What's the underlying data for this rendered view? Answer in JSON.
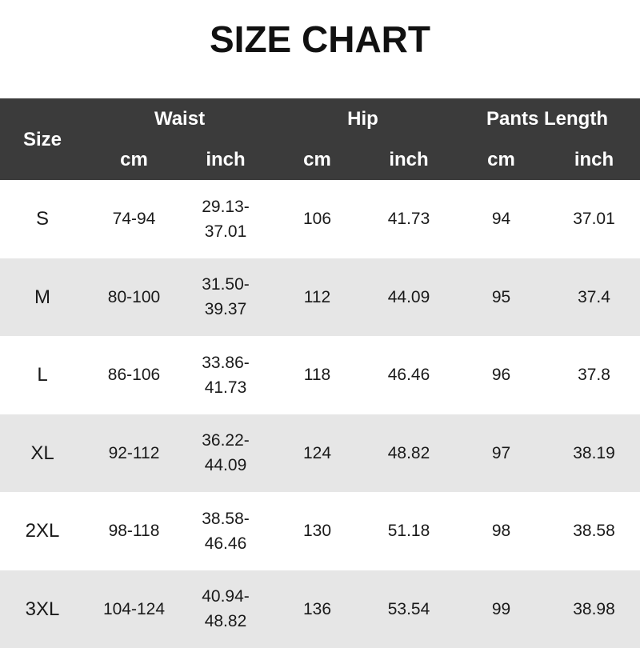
{
  "title": "SIZE CHART",
  "header": {
    "size": "Size",
    "groups": [
      "Waist",
      "Hip",
      "Pants Length"
    ],
    "units": [
      "cm",
      "inch",
      "cm",
      "inch",
      "cm",
      "inch"
    ]
  },
  "colors": {
    "header_bg": "#3b3b3b",
    "alt_row": "#e6e6e6"
  },
  "rows": [
    {
      "size": "S",
      "waist_cm": "74-94",
      "waist_in_1": "29.13-",
      "waist_in_2": "37.01",
      "hip_cm": "106",
      "hip_in": "41.73",
      "len_cm": "94",
      "len_in": "37.01"
    },
    {
      "size": "M",
      "waist_cm": "80-100",
      "waist_in_1": "31.50-",
      "waist_in_2": "39.37",
      "hip_cm": "112",
      "hip_in": "44.09",
      "len_cm": "95",
      "len_in": "37.4"
    },
    {
      "size": "L",
      "waist_cm": "86-106",
      "waist_in_1": "33.86-",
      "waist_in_2": "41.73",
      "hip_cm": "118",
      "hip_in": "46.46",
      "len_cm": "96",
      "len_in": "37.8"
    },
    {
      "size": "XL",
      "waist_cm": "92-112",
      "waist_in_1": "36.22-",
      "waist_in_2": "44.09",
      "hip_cm": "124",
      "hip_in": "48.82",
      "len_cm": "97",
      "len_in": "38.19"
    },
    {
      "size": "2XL",
      "waist_cm": "98-118",
      "waist_in_1": "38.58-",
      "waist_in_2": "46.46",
      "hip_cm": "130",
      "hip_in": "51.18",
      "len_cm": "98",
      "len_in": "38.58"
    },
    {
      "size": "3XL",
      "waist_cm": "104-124",
      "waist_in_1": "40.94-",
      "waist_in_2": "48.82",
      "hip_cm": "136",
      "hip_in": "53.54",
      "len_cm": "99",
      "len_in": "38.98"
    }
  ]
}
